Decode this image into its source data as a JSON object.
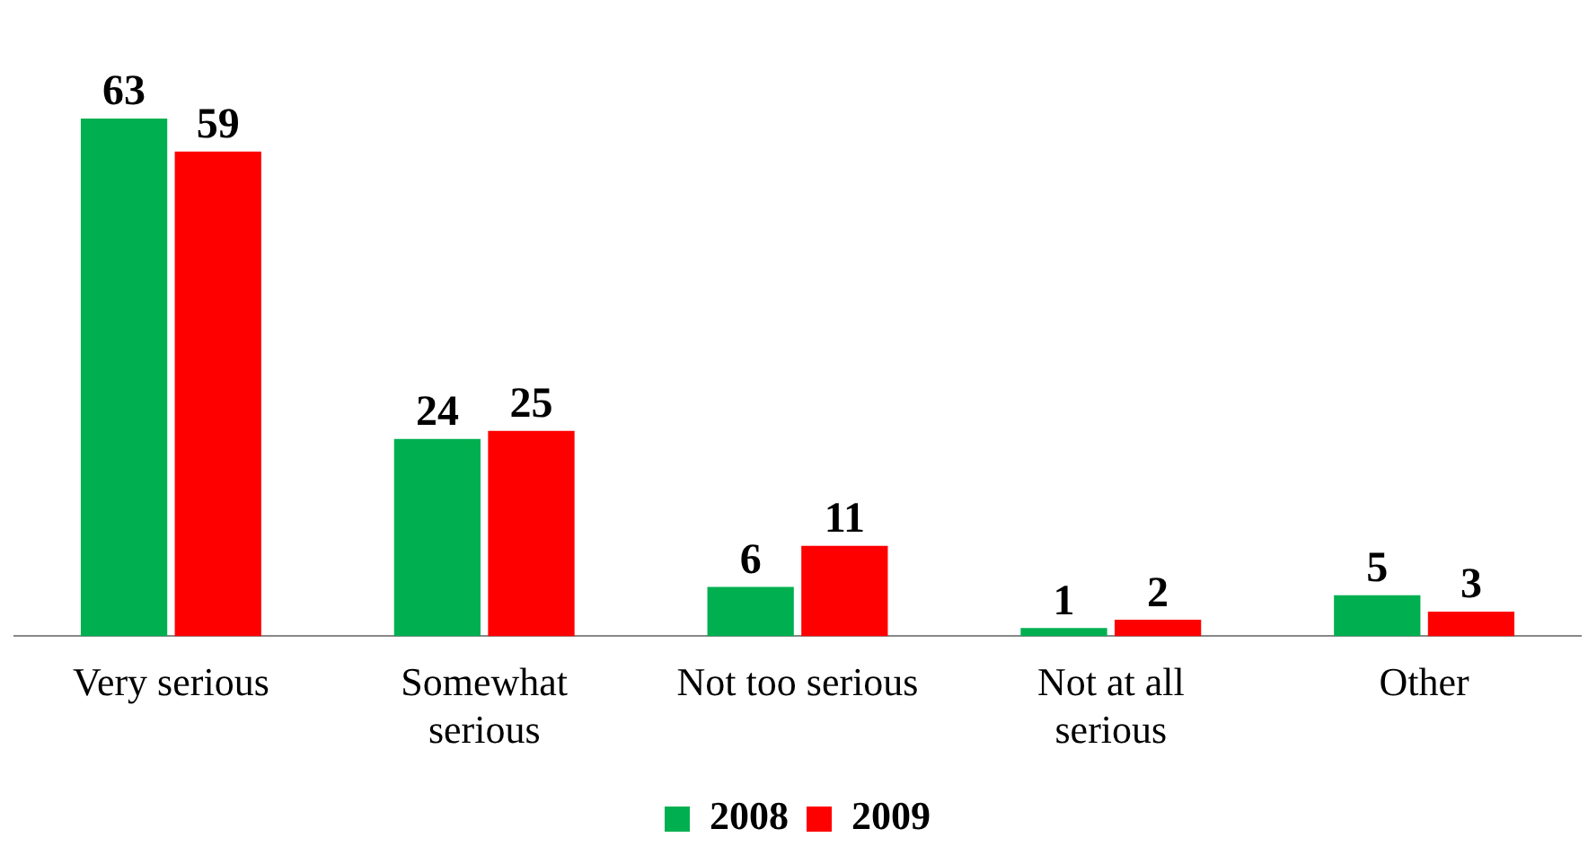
{
  "chart_data": {
    "type": "bar",
    "categories": [
      "Very serious",
      "Somewhat serious",
      "Not too serious",
      "Not at all serious",
      "Other"
    ],
    "series": [
      {
        "name": "2008",
        "color": "#00b050",
        "values": [
          63,
          24,
          6,
          1,
          5
        ]
      },
      {
        "name": "2009",
        "color": "#ff0000",
        "values": [
          59,
          25,
          11,
          2,
          3
        ]
      }
    ],
    "data_labels": true,
    "legend": "bottom",
    "grid": false
  }
}
